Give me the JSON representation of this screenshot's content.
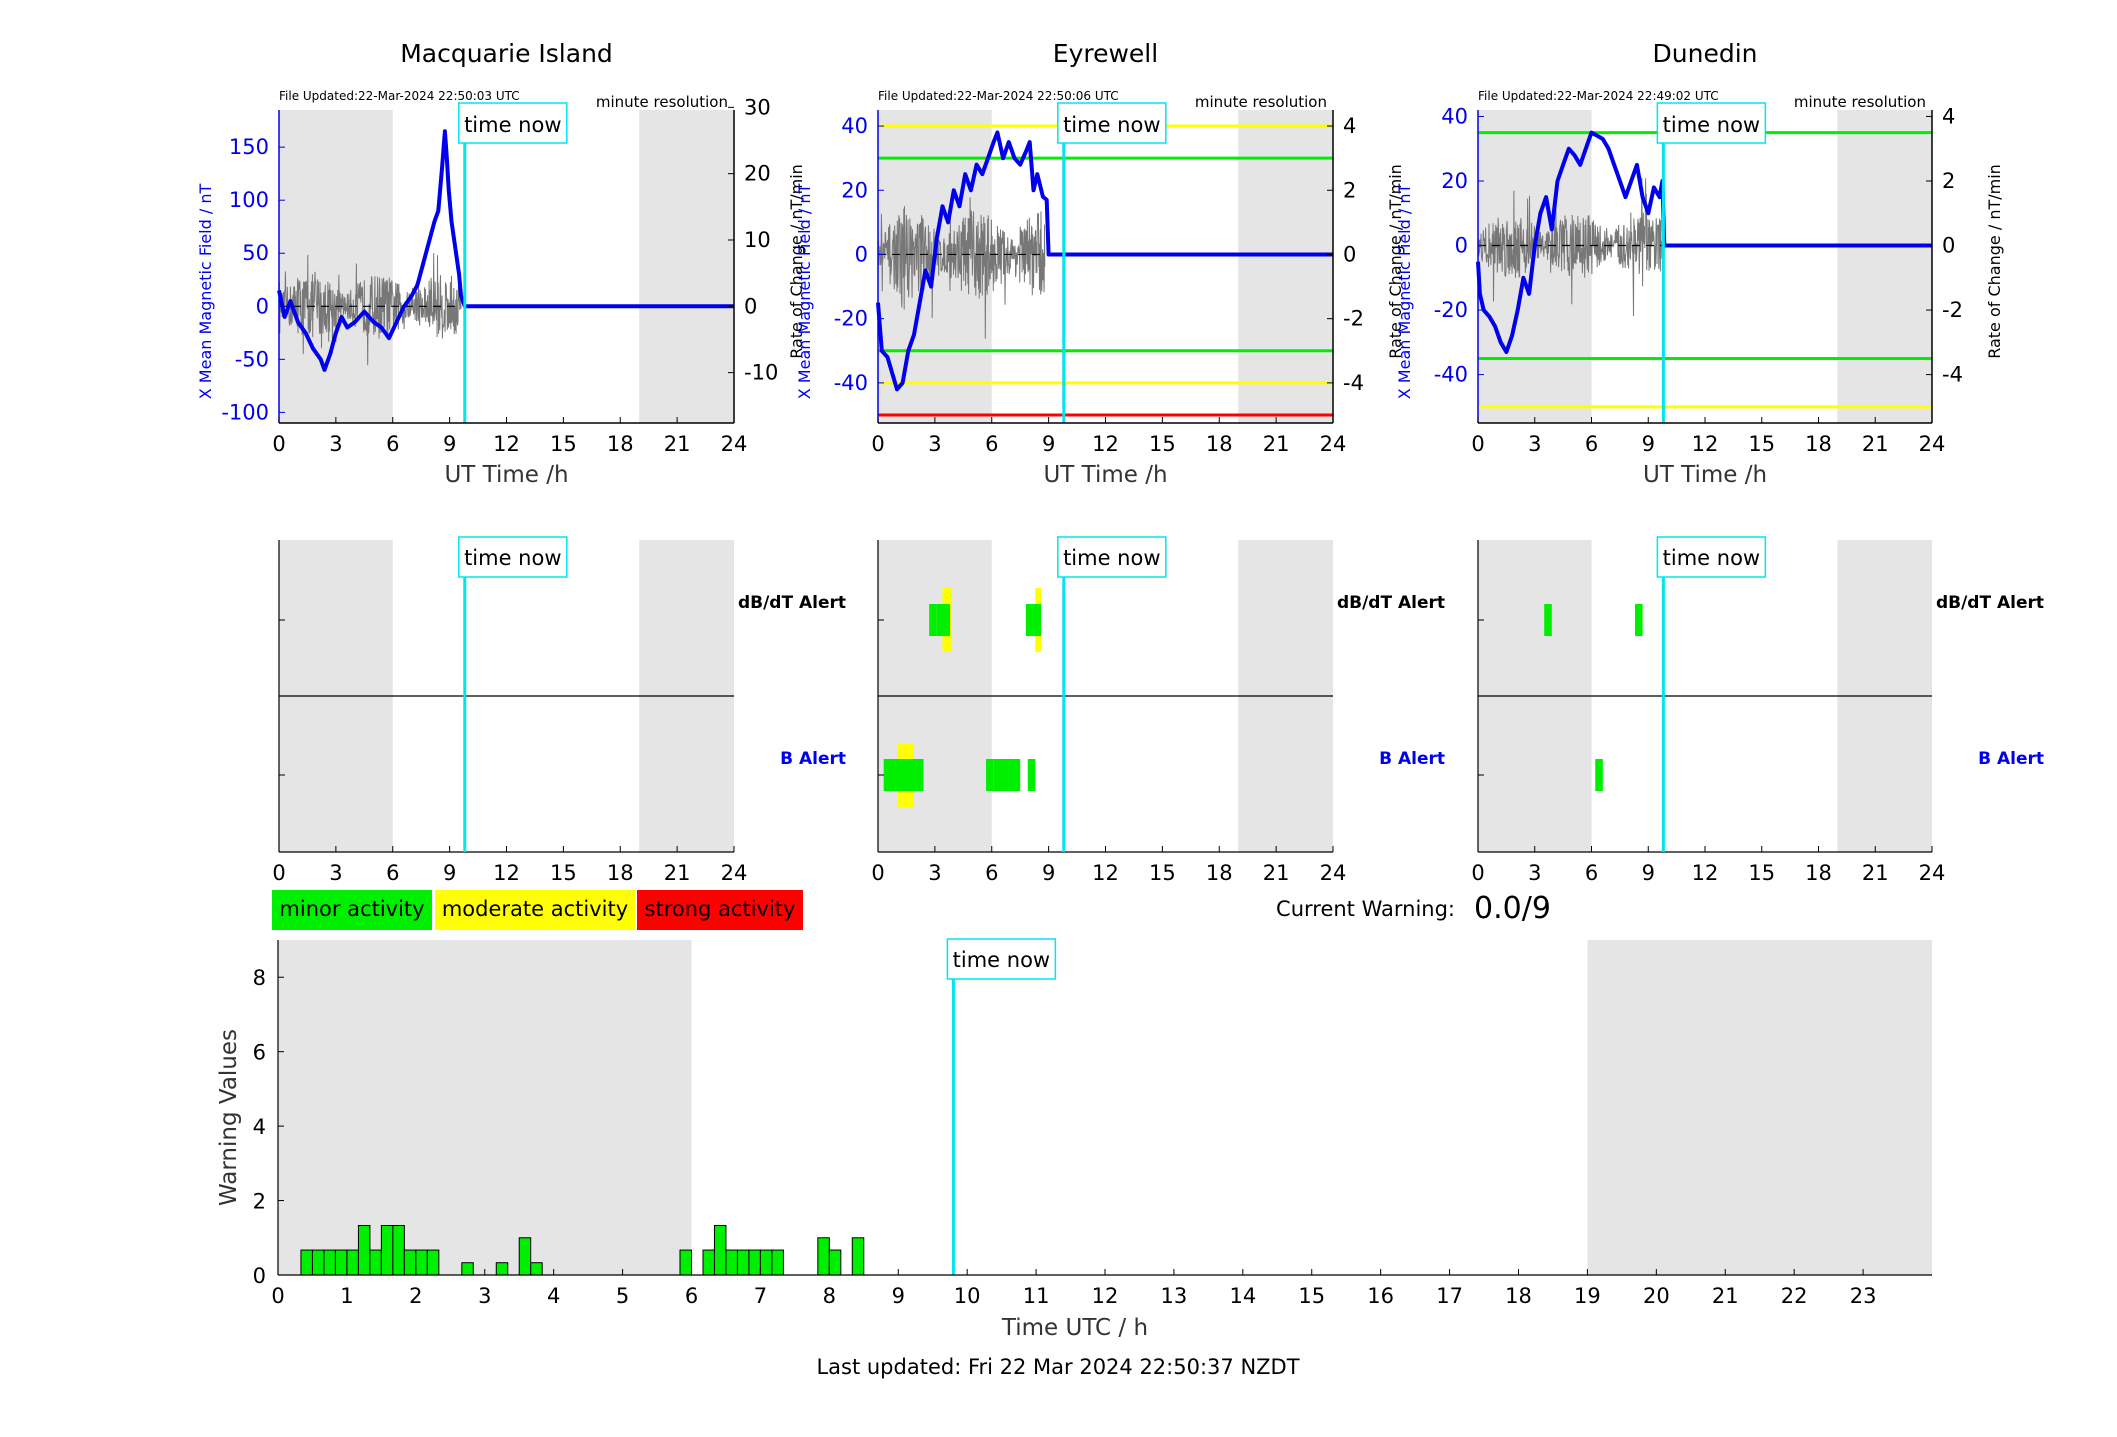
{
  "chart_data": {
    "type": "geomagnetic-dashboard",
    "colors": {
      "minor": "#00ee00",
      "moderate": "#ffff00",
      "strong": "#ff0000",
      "time_now": "#00e5ee",
      "mag_field": "#0000ee",
      "rate": "#777777",
      "night_shade": "#e5e5e5"
    },
    "time_now_hour": 9.8,
    "time_now_label": "time now",
    "stations": [
      {
        "name": "Macquarie Island",
        "file_updated": "File Updated:22-Mar-2024 22:50:03 UTC",
        "resolution": "minute resolution",
        "xlabel": "UT Time /h",
        "ylabel_left": "X Mean Magnetic Field / nT",
        "ylabel_right": "Rate of Change / nT/min",
        "xlim": [
          0,
          24
        ],
        "x_ticks": [
          0,
          3,
          6,
          9,
          12,
          15,
          18,
          21,
          24
        ],
        "ylim_left": [
          -110,
          185
        ],
        "yticks_left": [
          -100,
          -50,
          0,
          50,
          100,
          150
        ],
        "ylim_right": [
          -17.6,
          29.6
        ],
        "yticks_right": [
          -10,
          0,
          10,
          20,
          30
        ],
        "night_bands": [
          [
            0,
            6
          ],
          [
            19,
            24
          ]
        ],
        "thresholds": [],
        "field_x": [
          0,
          0.3,
          0.6,
          1,
          1.4,
          1.8,
          2.2,
          2.4,
          2.7,
          3,
          3.3,
          3.6,
          4,
          4.5,
          5,
          5.4,
          5.8,
          6.2,
          6.6,
          7,
          7.3,
          7.6,
          7.9,
          8.2,
          8.4,
          8.6,
          8.75,
          8.85,
          8.95,
          9.1,
          9.3,
          9.5,
          9.6,
          9.8,
          24
        ],
        "field_y": [
          15,
          -10,
          5,
          -15,
          -25,
          -40,
          -50,
          -60,
          -45,
          -25,
          -10,
          -20,
          -15,
          -5,
          -15,
          -20,
          -30,
          -15,
          0,
          10,
          20,
          40,
          60,
          80,
          90,
          130,
          165,
          140,
          110,
          80,
          55,
          30,
          10,
          0,
          0
        ],
        "rate_noise_hours": [
          0,
          9.6
        ],
        "rate_noise_amp": 7
      },
      {
        "name": "Eyrewell",
        "file_updated": "File Updated:22-Mar-2024 22:50:06 UTC",
        "resolution": "minute resolution",
        "xlabel": "UT Time /h",
        "ylabel_left": "X Mean Magnetic Field / nT",
        "ylabel_right": "Rate of Change / nT/min",
        "xlim": [
          0,
          24
        ],
        "x_ticks": [
          0,
          3,
          6,
          9,
          12,
          15,
          18,
          21,
          24
        ],
        "ylim_left": [
          -52.5,
          45
        ],
        "yticks_left": [
          -40,
          -20,
          0,
          20,
          40
        ],
        "ylim_right": [
          -5.25,
          4.5
        ],
        "yticks_right": [
          -4,
          -2,
          0,
          2,
          4
        ],
        "night_bands": [
          [
            0,
            6
          ],
          [
            19,
            24
          ]
        ],
        "thresholds": [
          {
            "value": 40,
            "color": "#ffff00"
          },
          {
            "value": 30,
            "color": "#00ee00"
          },
          {
            "value": -30,
            "color": "#00ee00"
          },
          {
            "value": -40,
            "color": "#ffff00"
          },
          {
            "value": -50,
            "color": "#ff0000"
          }
        ],
        "field_x": [
          0,
          0.2,
          0.5,
          0.8,
          1.0,
          1.3,
          1.6,
          1.9,
          2.2,
          2.5,
          2.8,
          3.1,
          3.4,
          3.7,
          4.0,
          4.3,
          4.6,
          4.9,
          5.2,
          5.5,
          5.8,
          6.1,
          6.3,
          6.6,
          6.9,
          7.2,
          7.5,
          7.8,
          8.0,
          8.2,
          8.4,
          8.7,
          8.9,
          9.0,
          24
        ],
        "field_y": [
          -15,
          -30,
          -32,
          -38,
          -42,
          -40,
          -30,
          -25,
          -15,
          -5,
          -10,
          5,
          15,
          10,
          20,
          15,
          25,
          20,
          28,
          25,
          30,
          35,
          38,
          30,
          35,
          30,
          28,
          32,
          35,
          20,
          25,
          18,
          17,
          0,
          0
        ],
        "rate_noise_hours": [
          0,
          8.8
        ],
        "rate_noise_amp": 2
      },
      {
        "name": "Dunedin",
        "file_updated": "File Updated:22-Mar-2024 22:49:02 UTC",
        "resolution": "minute resolution",
        "xlabel": "UT Time /h",
        "ylabel_left": "X Mean Magnetic Field / nT",
        "ylabel_right": "Rate of Change / nT/min",
        "xlim": [
          0,
          24
        ],
        "x_ticks": [
          0,
          3,
          6,
          9,
          12,
          15,
          18,
          21,
          24
        ],
        "ylim_left": [
          -55,
          42
        ],
        "yticks_left": [
          -40,
          -20,
          0,
          20,
          40
        ],
        "ylim_right": [
          -5.5,
          4.2
        ],
        "yticks_right": [
          -4,
          -2,
          0,
          2,
          4
        ],
        "night_bands": [
          [
            0,
            6
          ],
          [
            19,
            24
          ]
        ],
        "thresholds": [
          {
            "value": 35,
            "color": "#00ee00"
          },
          {
            "value": -35,
            "color": "#00ee00"
          },
          {
            "value": -50,
            "color": "#ffff00"
          }
        ],
        "field_x": [
          0,
          0.1,
          0.3,
          0.6,
          0.9,
          1.2,
          1.5,
          1.8,
          2.1,
          2.4,
          2.7,
          3.0,
          3.3,
          3.6,
          3.9,
          4.2,
          4.5,
          4.8,
          5.1,
          5.4,
          5.7,
          6.0,
          6.3,
          6.6,
          6.9,
          7.2,
          7.5,
          7.8,
          8.1,
          8.4,
          8.7,
          9.0,
          9.3,
          9.6,
          9.75,
          9.85,
          24
        ],
        "field_y": [
          -5,
          -15,
          -20,
          -22,
          -25,
          -30,
          -33,
          -28,
          -20,
          -10,
          -15,
          0,
          10,
          15,
          5,
          20,
          25,
          30,
          28,
          25,
          30,
          35,
          34,
          33,
          30,
          25,
          20,
          15,
          20,
          25,
          15,
          10,
          18,
          15,
          20,
          0,
          0
        ],
        "rate_noise_hours": [
          0,
          9.7
        ],
        "rate_noise_amp": 1.5
      }
    ],
    "alerts": {
      "x_ticks": [
        0,
        3,
        6,
        9,
        12,
        15,
        18,
        21,
        24
      ],
      "row_labels": [
        {
          "label": "dB/dT Alert",
          "color": "#000000"
        },
        {
          "label": "B Alert",
          "color": "#0000ee"
        }
      ],
      "stations": [
        {
          "name": "Macquarie Island",
          "dbdt": [],
          "b": []
        },
        {
          "name": "Eyrewell",
          "dbdt": [
            {
              "start": 2.7,
              "end": 3.1,
              "level": "minor"
            },
            {
              "start": 3.4,
              "end": 3.9,
              "level": "moderate"
            },
            {
              "start": 3.1,
              "end": 3.8,
              "level": "minor"
            },
            {
              "start": 7.8,
              "end": 8.2,
              "level": "minor"
            },
            {
              "start": 8.3,
              "end": 8.6,
              "level": "moderate"
            },
            {
              "start": 8.2,
              "end": 8.6,
              "level": "minor"
            }
          ],
          "b": [
            {
              "start": 1.0,
              "end": 1.9,
              "level": "moderate"
            },
            {
              "start": 0.3,
              "end": 2.4,
              "level": "minor"
            },
            {
              "start": 5.7,
              "end": 6.1,
              "level": "minor"
            },
            {
              "start": 6.1,
              "end": 7.5,
              "level": "minor"
            },
            {
              "start": 7.9,
              "end": 8.3,
              "level": "minor"
            }
          ]
        },
        {
          "name": "Dunedin",
          "dbdt": [
            {
              "start": 3.5,
              "end": 3.9,
              "level": "minor"
            },
            {
              "start": 8.3,
              "end": 8.7,
              "level": "minor"
            }
          ],
          "b": [
            {
              "start": 6.2,
              "end": 6.6,
              "level": "minor"
            }
          ]
        }
      ]
    },
    "legend": [
      "minor activity",
      "moderate activity",
      "strong activity"
    ],
    "current_warning_label": "Current Warning:",
    "current_warning_value": "0.0/9",
    "warning": {
      "type": "bar",
      "xlabel": "Time UTC / h",
      "ylabel": "Warning Values",
      "xlim": [
        0,
        24
      ],
      "ylim": [
        0,
        9
      ],
      "yticks": [
        0,
        2,
        4,
        6,
        8
      ],
      "xticks": [
        0,
        1,
        2,
        3,
        4,
        5,
        6,
        7,
        8,
        9,
        10,
        11,
        12,
        13,
        14,
        15,
        16,
        17,
        18,
        19,
        20,
        21,
        22,
        23
      ],
      "night_bands": [
        [
          0,
          6
        ],
        [
          19,
          24
        ]
      ],
      "bar_width_h": 0.1667,
      "bars_x": [
        0.333,
        0.5,
        0.667,
        0.833,
        1.0,
        1.167,
        1.333,
        1.5,
        1.667,
        1.833,
        2.0,
        2.167,
        2.667,
        3.167,
        3.5,
        3.667,
        5.833,
        6.167,
        6.333,
        6.5,
        6.667,
        6.833,
        7.0,
        7.167,
        7.833,
        8.0,
        8.333
      ],
      "bars_y": [
        0.67,
        0.67,
        0.67,
        0.67,
        0.67,
        1.33,
        0.67,
        1.33,
        1.33,
        0.67,
        0.67,
        0.67,
        0.33,
        0.33,
        1.0,
        0.33,
        0.67,
        0.67,
        1.33,
        0.67,
        0.67,
        0.67,
        0.67,
        0.67,
        1.0,
        0.67,
        1.0
      ]
    },
    "footer": "Last updated: Fri 22 Mar 2024 22:50:37 NZDT"
  }
}
